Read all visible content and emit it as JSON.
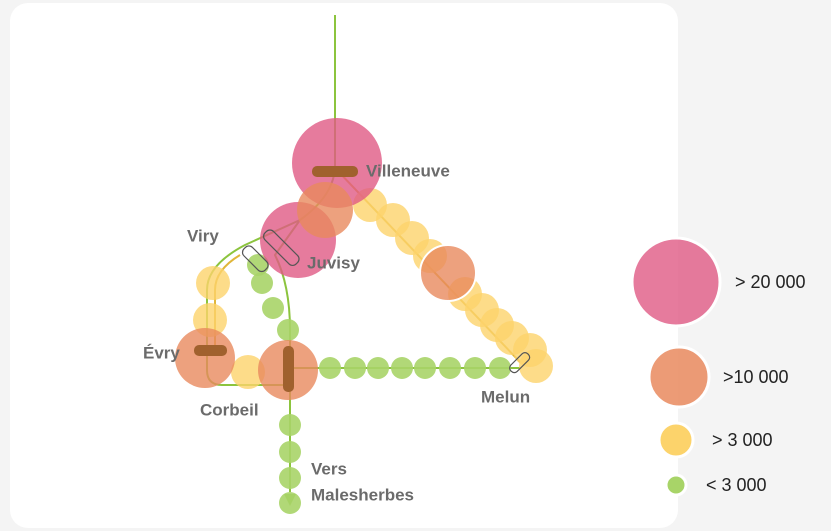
{
  "stations": [
    "Villeneuve",
    "Viry",
    "Juvisy",
    "Évry",
    "Corbeil",
    "Melun"
  ],
  "destination": [
    "Vers",
    "Malesherbes"
  ],
  "legend": [
    "> 20 000",
    ">10 000",
    "> 3 000",
    "< 3 000"
  ]
}
